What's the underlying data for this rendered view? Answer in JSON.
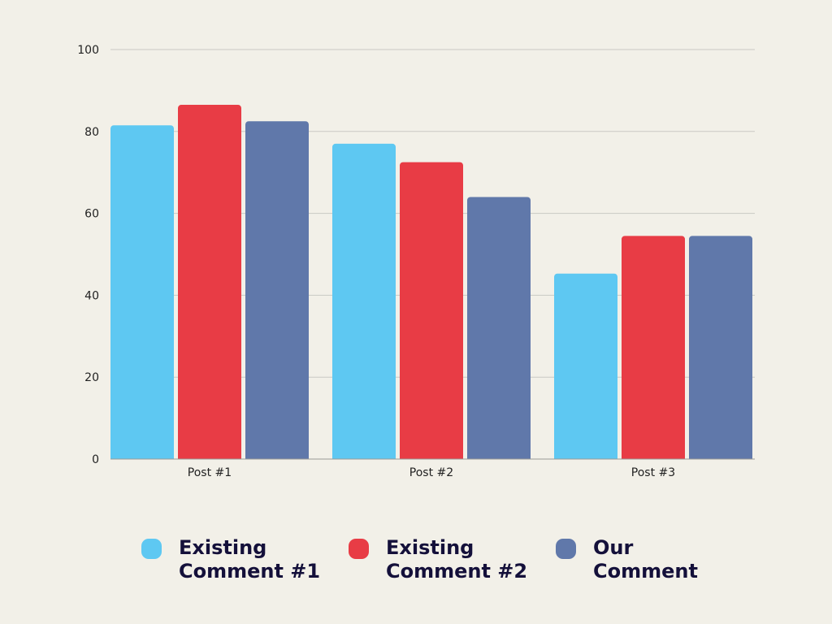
{
  "chart_data": {
    "type": "bar",
    "title": "",
    "xlabel": "",
    "ylabel": "",
    "categories": [
      "Post #1",
      "Post #2",
      "Post #3"
    ],
    "series": [
      {
        "name": "Existing Comment #1",
        "color": "#5ec8f2",
        "values": [
          81.5,
          77,
          45.3
        ]
      },
      {
        "name": "Existing Comment #2",
        "color": "#e83c45",
        "values": [
          86.5,
          72.5,
          54.5
        ]
      },
      {
        "name": "Our Comment",
        "color": "#6078aa",
        "values": [
          82.5,
          64,
          54.5
        ]
      }
    ],
    "ylim": [
      0,
      100
    ],
    "yticks": [
      0,
      20,
      40,
      60,
      80,
      100
    ],
    "grid": true,
    "legend_position": "bottom"
  }
}
